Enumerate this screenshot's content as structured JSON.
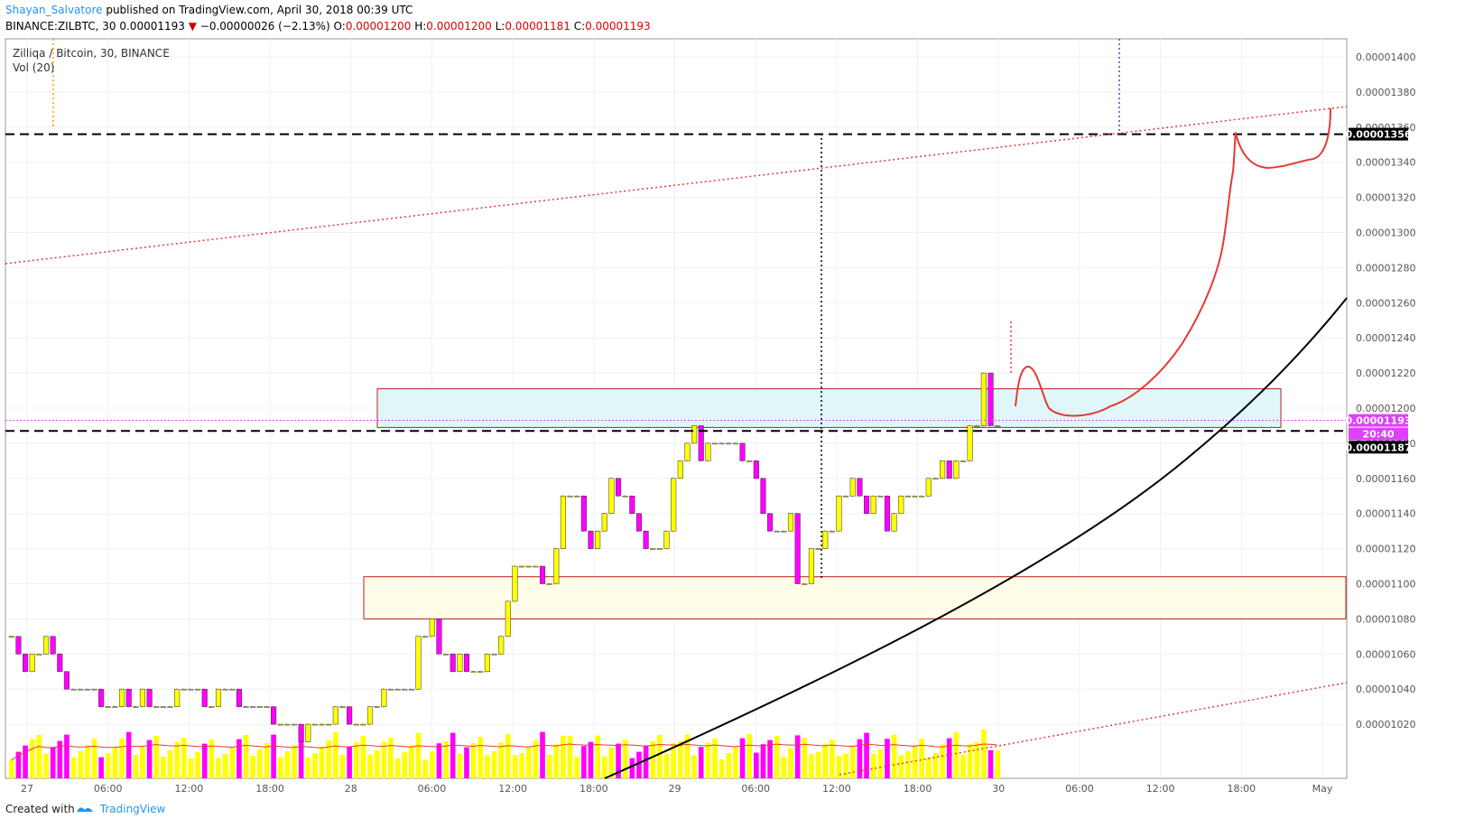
{
  "header": {
    "user": "Shayan_Salvatore",
    "published_text": "published on TradingView.com, April 30, 2018 00:39 UTC",
    "symbol": "BINANCE:ZILBTC, 30",
    "last": "0.00001193",
    "change": "−0.00000026 (−2.13%)",
    "o_label": "O:",
    "o_value": "0.00001200",
    "h_label": "H:",
    "h_value": "0.00001200",
    "l_label": "L:",
    "l_value": "0.00001181",
    "c_label": "C:",
    "c_value": "0.00001193"
  },
  "pane": {
    "title": "Zilliqa / Bitcoin, 30, BINANCE",
    "indicator": "Vol (20)"
  },
  "footer": {
    "created_with": "Created with",
    "brand": "TradingView"
  },
  "colors": {
    "up": "#ffff00",
    "down": "#ff00ff",
    "accent_red": "#e00000",
    "resistance_box": "#e0f7fa",
    "support_box": "#fffde7"
  },
  "chart_data": {
    "type": "candlestick",
    "title": "Zilliqa / Bitcoin, 30, BINANCE",
    "ylim": [
      1.01e-05,
      1.41e-05
    ],
    "y_ticks": [
      "0.00001400",
      "0.00001380",
      "0.00001360",
      "0.00001340",
      "0.00001320",
      "0.00001300",
      "0.00001280",
      "0.00001260",
      "0.00001240",
      "0.00001220",
      "0.00001200",
      "0.00001180",
      "0.00001160",
      "0.00001140",
      "0.00001120",
      "0.00001100",
      "0.00001080",
      "0.00001060",
      "0.00001040",
      "0.00001020"
    ],
    "x_ticks": [
      "27",
      "06:00",
      "12:00",
      "18:00",
      "28",
      "06:00",
      "12:00",
      "18:00",
      "29",
      "06:00",
      "12:00",
      "18:00",
      "30",
      "06:00",
      "12:00",
      "18:00",
      "May"
    ],
    "price_labels": [
      {
        "value": "0.00001356",
        "style": "black"
      },
      {
        "value": "0.00001193",
        "style": "magenta"
      },
      {
        "value": "20:40",
        "style": "magenta"
      },
      {
        "value": "0.00001187",
        "style": "black"
      }
    ],
    "horizontal_levels": [
      1.356e-05,
      1.187e-05
    ],
    "resistance_zone": [
      1.189e-05,
      1.211e-05
    ],
    "support_zone": [
      1.08e-05,
      1.104e-05
    ],
    "last_price": 1.193e-05,
    "closes": [
      1.07e-05,
      1.06e-05,
      1.05e-05,
      1.06e-05,
      1.06e-05,
      1.07e-05,
      1.06e-05,
      1.05e-05,
      1.04e-05,
      1.04e-05,
      1.04e-05,
      1.04e-05,
      1.04e-05,
      1.03e-05,
      1.03e-05,
      1.03e-05,
      1.04e-05,
      1.03e-05,
      1.03e-05,
      1.04e-05,
      1.03e-05,
      1.03e-05,
      1.03e-05,
      1.03e-05,
      1.04e-05,
      1.04e-05,
      1.04e-05,
      1.04e-05,
      1.03e-05,
      1.03e-05,
      1.04e-05,
      1.04e-05,
      1.04e-05,
      1.03e-05,
      1.03e-05,
      1.03e-05,
      1.03e-05,
      1.03e-05,
      1.02e-05,
      1.02e-05,
      1.02e-05,
      1.02e-05,
      1.01e-05,
      1.02e-05,
      1.02e-05,
      1.02e-05,
      1.02e-05,
      1.03e-05,
      1.03e-05,
      1.02e-05,
      1.02e-05,
      1.02e-05,
      1.03e-05,
      1.03e-05,
      1.04e-05,
      1.04e-05,
      1.04e-05,
      1.04e-05,
      1.04e-05,
      1.07e-05,
      1.07e-05,
      1.08e-05,
      1.06e-05,
      1.06e-05,
      1.05e-05,
      1.06e-05,
      1.05e-05,
      1.05e-05,
      1.05e-05,
      1.06e-05,
      1.06e-05,
      1.07e-05,
      1.09e-05,
      1.11e-05,
      1.11e-05,
      1.11e-05,
      1.11e-05,
      1.1e-05,
      1.1e-05,
      1.12e-05,
      1.15e-05,
      1.15e-05,
      1.15e-05,
      1.13e-05,
      1.12e-05,
      1.13e-05,
      1.14e-05,
      1.16e-05,
      1.15e-05,
      1.15e-05,
      1.14e-05,
      1.13e-05,
      1.12e-05,
      1.12e-05,
      1.12e-05,
      1.13e-05,
      1.16e-05,
      1.17e-05,
      1.18e-05,
      1.19e-05,
      1.17e-05,
      1.18e-05,
      1.18e-05,
      1.18e-05,
      1.18e-05,
      1.18e-05,
      1.17e-05,
      1.17e-05,
      1.16e-05,
      1.14e-05,
      1.13e-05,
      1.13e-05,
      1.13e-05,
      1.14e-05,
      1.1e-05,
      1.1e-05,
      1.12e-05,
      1.12e-05,
      1.13e-05,
      1.13e-05,
      1.15e-05,
      1.15e-05,
      1.16e-05,
      1.15e-05,
      1.14e-05,
      1.15e-05,
      1.15e-05,
      1.13e-05,
      1.14e-05,
      1.15e-05,
      1.15e-05,
      1.15e-05,
      1.15e-05,
      1.16e-05,
      1.16e-05,
      1.17e-05,
      1.16e-05,
      1.17e-05,
      1.17e-05,
      1.19e-05,
      1.19e-05,
      1.22e-05,
      1.19e-05,
      1.19e-05
    ]
  }
}
